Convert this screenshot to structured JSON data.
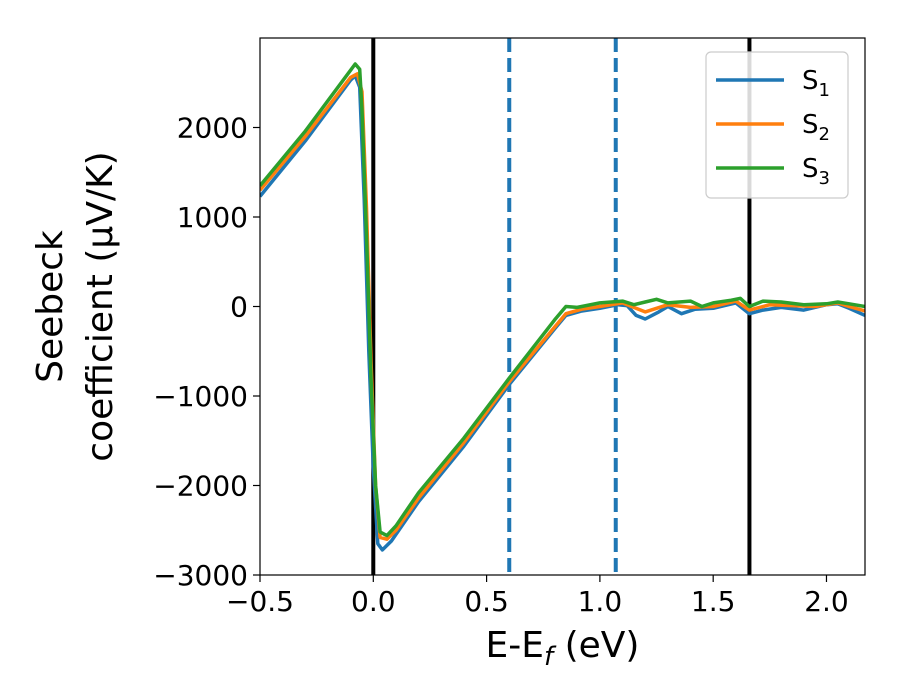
{
  "chart_data": {
    "type": "line",
    "xlabel_main": "E-E",
    "xlabel_sub": "f",
    "xlabel_unit": " (eV)",
    "ylabel_line1": "Seebeck",
    "ylabel_line2": "coefficient  (μV/K)",
    "xlim": [
      -0.5,
      2.17
    ],
    "ylim": [
      -3000,
      3000
    ],
    "xticks": [
      -0.5,
      0.0,
      0.5,
      1.0,
      1.5,
      2.0
    ],
    "xtick_labels": [
      "−0.5",
      "0.0",
      "0.5",
      "1.0",
      "1.5",
      "2.0"
    ],
    "yticks": [
      -3000,
      -2000,
      -1000,
      0,
      1000,
      2000
    ],
    "ytick_labels": [
      "−3000",
      "−2000",
      "−1000",
      "0",
      "1000",
      "2000"
    ],
    "legend_position": "top-right",
    "vlines": [
      {
        "x": 0.0,
        "style": "solid",
        "color": "#000000"
      },
      {
        "x": 0.6,
        "style": "dashed",
        "color": "#1f77b4"
      },
      {
        "x": 1.07,
        "style": "dashed",
        "color": "#1f77b4"
      },
      {
        "x": 1.66,
        "style": "solid",
        "color": "#000000"
      }
    ],
    "series": [
      {
        "name": "S",
        "subscript": "1",
        "color": "#1f77b4",
        "points": [
          [
            -0.5,
            1230
          ],
          [
            -0.3,
            1850
          ],
          [
            -0.1,
            2530
          ],
          [
            -0.08,
            2580
          ],
          [
            -0.06,
            2450
          ],
          [
            -0.04,
            1200
          ],
          [
            -0.02,
            -500
          ],
          [
            0.0,
            -1800
          ],
          [
            0.02,
            -2650
          ],
          [
            0.04,
            -2720
          ],
          [
            0.08,
            -2620
          ],
          [
            0.2,
            -2180
          ],
          [
            0.4,
            -1560
          ],
          [
            0.6,
            -870
          ],
          [
            0.8,
            -250
          ],
          [
            0.85,
            -100
          ],
          [
            0.92,
            -50
          ],
          [
            1.0,
            -20
          ],
          [
            1.08,
            20
          ],
          [
            1.12,
            10
          ],
          [
            1.16,
            -100
          ],
          [
            1.2,
            -140
          ],
          [
            1.26,
            -60
          ],
          [
            1.3,
            0
          ],
          [
            1.36,
            -80
          ],
          [
            1.42,
            -30
          ],
          [
            1.5,
            -20
          ],
          [
            1.6,
            40
          ],
          [
            1.66,
            -80
          ],
          [
            1.72,
            -40
          ],
          [
            1.8,
            -10
          ],
          [
            1.9,
            -40
          ],
          [
            2.0,
            20
          ],
          [
            2.05,
            30
          ],
          [
            2.1,
            -20
          ],
          [
            2.17,
            -100
          ]
        ]
      },
      {
        "name": "S",
        "subscript": "2",
        "color": "#ff7f0e",
        "points": [
          [
            -0.5,
            1300
          ],
          [
            -0.3,
            1900
          ],
          [
            -0.1,
            2560
          ],
          [
            -0.07,
            2600
          ],
          [
            -0.05,
            2400
          ],
          [
            -0.03,
            1100
          ],
          [
            -0.01,
            -600
          ],
          [
            0.01,
            -2000
          ],
          [
            0.03,
            -2580
          ],
          [
            0.06,
            -2600
          ],
          [
            0.1,
            -2500
          ],
          [
            0.2,
            -2140
          ],
          [
            0.4,
            -1520
          ],
          [
            0.6,
            -840
          ],
          [
            0.8,
            -230
          ],
          [
            0.85,
            -80
          ],
          [
            0.92,
            -30
          ],
          [
            1.0,
            0
          ],
          [
            1.1,
            40
          ],
          [
            1.2,
            -60
          ],
          [
            1.3,
            20
          ],
          [
            1.4,
            -10
          ],
          [
            1.5,
            0
          ],
          [
            1.6,
            60
          ],
          [
            1.66,
            -40
          ],
          [
            1.75,
            20
          ],
          [
            1.85,
            10
          ],
          [
            1.95,
            0
          ],
          [
            2.05,
            40
          ],
          [
            2.1,
            0
          ],
          [
            2.17,
            -50
          ]
        ]
      },
      {
        "name": "S",
        "subscript": "3",
        "color": "#2ca02c",
        "points": [
          [
            -0.5,
            1350
          ],
          [
            -0.3,
            1960
          ],
          [
            -0.1,
            2640
          ],
          [
            -0.08,
            2710
          ],
          [
            -0.06,
            2650
          ],
          [
            -0.05,
            2200
          ],
          [
            -0.03,
            800
          ],
          [
            -0.01,
            -800
          ],
          [
            0.01,
            -2000
          ],
          [
            0.03,
            -2520
          ],
          [
            0.06,
            -2560
          ],
          [
            0.1,
            -2450
          ],
          [
            0.2,
            -2080
          ],
          [
            0.4,
            -1470
          ],
          [
            0.6,
            -800
          ],
          [
            0.8,
            -150
          ],
          [
            0.85,
            0
          ],
          [
            0.9,
            -10
          ],
          [
            1.0,
            40
          ],
          [
            1.1,
            60
          ],
          [
            1.15,
            20
          ],
          [
            1.2,
            50
          ],
          [
            1.25,
            80
          ],
          [
            1.3,
            40
          ],
          [
            1.4,
            60
          ],
          [
            1.45,
            0
          ],
          [
            1.5,
            40
          ],
          [
            1.58,
            70
          ],
          [
            1.62,
            90
          ],
          [
            1.66,
            0
          ],
          [
            1.72,
            60
          ],
          [
            1.8,
            50
          ],
          [
            1.9,
            20
          ],
          [
            2.0,
            30
          ],
          [
            2.05,
            50
          ],
          [
            2.1,
            30
          ],
          [
            2.17,
            0
          ]
        ]
      }
    ]
  }
}
